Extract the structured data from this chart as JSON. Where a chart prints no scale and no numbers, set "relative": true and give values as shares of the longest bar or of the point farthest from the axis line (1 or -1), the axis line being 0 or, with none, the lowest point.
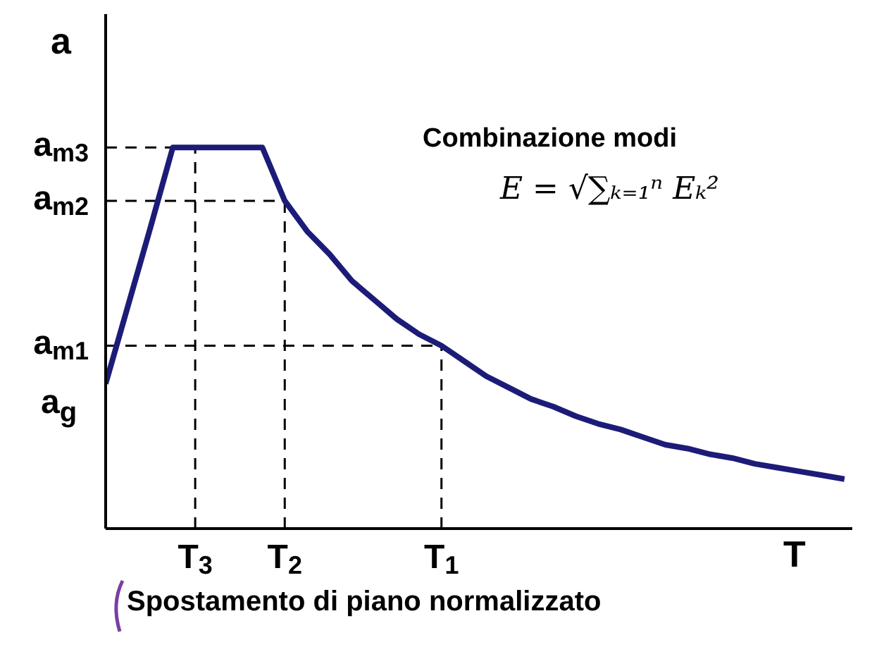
{
  "chart_data": {
    "type": "line",
    "relative": true,
    "xlabel": "T",
    "ylabel": "a",
    "categories": [
      null,
      null,
      null,
      null,
      "T$_{3}$",
      null,
      null,
      null,
      "T$_{2}$",
      null,
      null,
      null,
      null,
      null,
      null,
      "T$_{1}$",
      null,
      null,
      null,
      null,
      null,
      null,
      null,
      null,
      null,
      null,
      null,
      null,
      null,
      null,
      null,
      null,
      null,
      null
    ],
    "series": [
      {
        "color": "#1c1c78",
        "values": [
          0.38,
          0.585,
          0.79,
          1,
          1,
          1,
          1,
          1,
          0.86,
          0.78,
          0.72,
          0.65,
          0.6,
          0.55,
          0.51,
          0.48,
          0.44,
          0.4,
          0.37,
          0.34,
          0.32,
          0.295,
          0.275,
          0.26,
          0.24,
          0.22,
          0.21,
          0.195,
          0.185,
          0.17,
          0.16,
          0.15,
          0.14,
          0.13
        ]
      }
    ],
    "ref_lines": [
      {
        "axis": "y",
        "value": 1,
        "label": "a$_{m3}$",
        "line_style": "dashed",
        "color": "#000000"
      },
      {
        "axis": "y",
        "value": 0.86,
        "label": "a$_{m2}$",
        "line_style": "dashed",
        "color": "#000000"
      },
      {
        "axis": "y",
        "value": 0.48,
        "label": "a$_{m1}$",
        "line_style": "dashed",
        "color": "#000000"
      },
      {
        "axis": "x",
        "value": "T$_{3}$",
        "line_style": "dashed",
        "color": "#000000"
      },
      {
        "axis": "x",
        "value": "T$_{2}$",
        "line_style": "dashed",
        "color": "#000000"
      },
      {
        "axis": "x",
        "value": "T$_{1}$",
        "line_style": "dashed",
        "color": "#000000"
      }
    ],
    "annotations": [
      "a$_{g}$",
      "Combinazione modi",
      "E = √∑ₖ₌₁ⁿ Eₖ²",
      "Spostamento di piano normalizzato"
    ],
    "grid": false,
    "legend": false,
    "marker": "none",
    "line_style": "solid"
  }
}
